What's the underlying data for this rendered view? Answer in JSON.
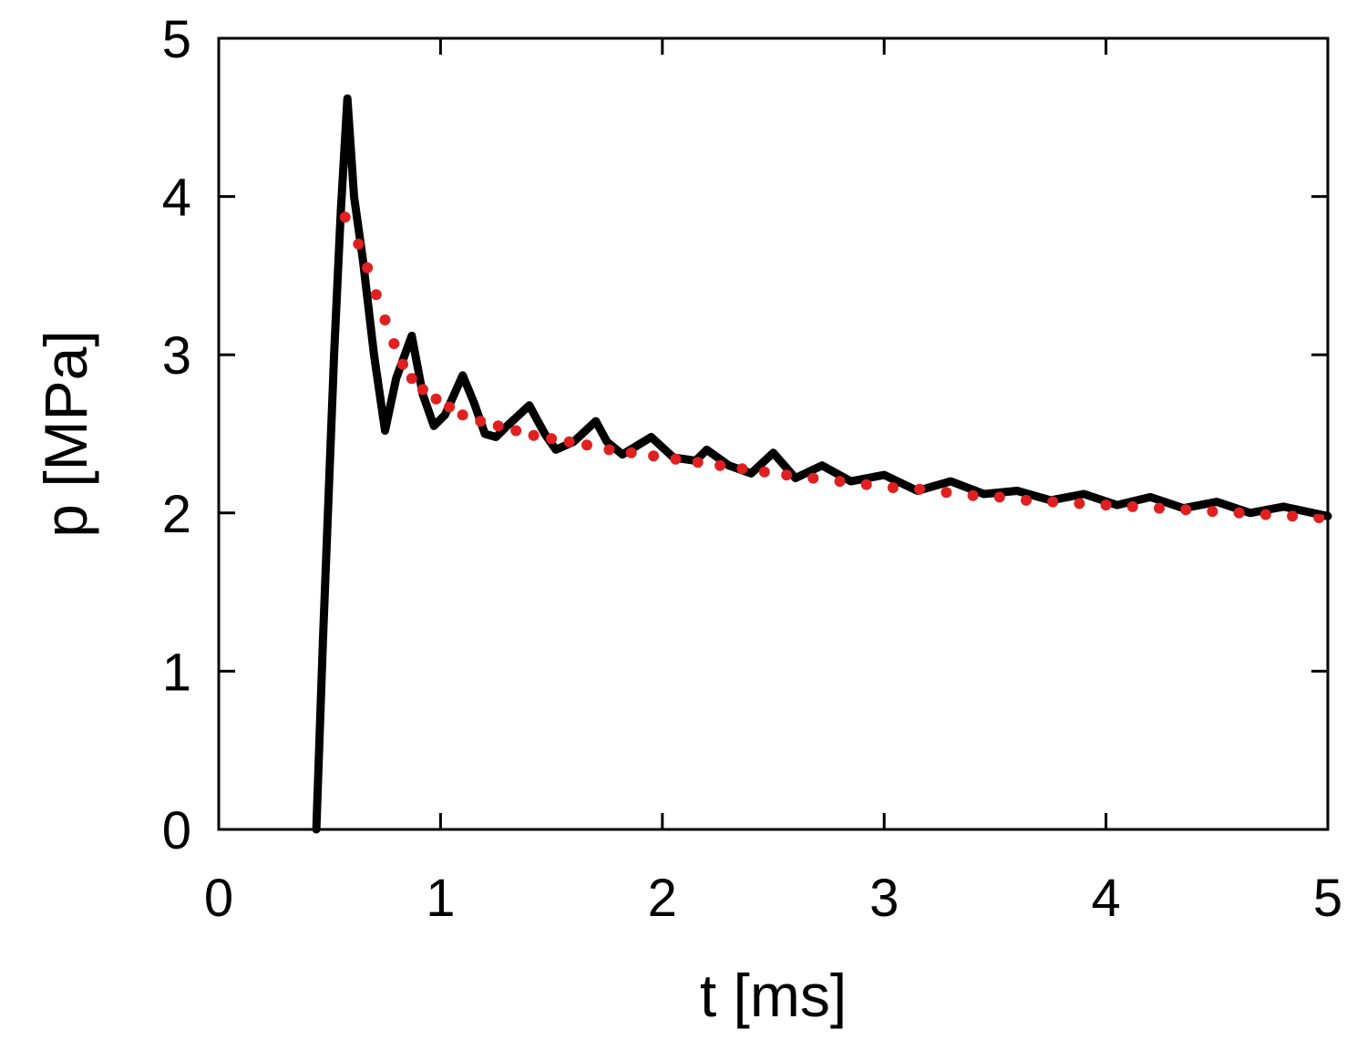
{
  "chart_data": {
    "type": "line",
    "xlabel": "t [ms]",
    "ylabel": "p [MPa]",
    "xlim": [
      0,
      5
    ],
    "ylim": [
      0,
      5
    ],
    "x_ticks": [
      "0",
      "1",
      "2",
      "3",
      "4",
      "5"
    ],
    "y_ticks": [
      "0",
      "1",
      "2",
      "3",
      "4",
      "5"
    ],
    "grid": false,
    "legend": "none",
    "series": [
      {
        "style": "solid",
        "color": "#000000",
        "x": [
          0.44,
          0.47,
          0.52,
          0.55,
          0.58,
          0.61,
          0.65,
          0.7,
          0.75,
          0.8,
          0.87,
          0.92,
          0.97,
          1.02,
          1.1,
          1.15,
          1.2,
          1.25,
          1.3,
          1.4,
          1.47,
          1.52,
          1.6,
          1.7,
          1.75,
          1.82,
          1.95,
          2.05,
          2.15,
          2.2,
          2.3,
          2.4,
          2.5,
          2.6,
          2.72,
          2.85,
          3.0,
          3.15,
          3.3,
          3.45,
          3.6,
          3.75,
          3.9,
          4.05,
          4.2,
          4.35,
          4.5,
          4.65,
          4.8,
          5.0
        ],
        "y": [
          0.0,
          1.2,
          3.0,
          3.9,
          4.62,
          4.0,
          3.6,
          3.0,
          2.52,
          2.85,
          3.12,
          2.75,
          2.55,
          2.62,
          2.87,
          2.7,
          2.5,
          2.48,
          2.55,
          2.68,
          2.5,
          2.4,
          2.45,
          2.58,
          2.45,
          2.37,
          2.48,
          2.35,
          2.33,
          2.4,
          2.3,
          2.25,
          2.38,
          2.22,
          2.3,
          2.2,
          2.24,
          2.14,
          2.2,
          2.12,
          2.14,
          2.08,
          2.12,
          2.05,
          2.1,
          2.03,
          2.07,
          2.0,
          2.04,
          1.98
        ]
      },
      {
        "style": "dotted",
        "color": "#e02020",
        "x": [
          0.57,
          0.63,
          0.67,
          0.71,
          0.75,
          0.79,
          0.83,
          0.87,
          0.92,
          0.98,
          1.04,
          1.1,
          1.18,
          1.26,
          1.34,
          1.42,
          1.5,
          1.58,
          1.66,
          1.76,
          1.86,
          1.96,
          2.06,
          2.16,
          2.26,
          2.36,
          2.46,
          2.56,
          2.68,
          2.8,
          2.92,
          3.04,
          3.16,
          3.28,
          3.4,
          3.52,
          3.64,
          3.76,
          3.88,
          4.0,
          4.12,
          4.24,
          4.36,
          4.48,
          4.6,
          4.72,
          4.84,
          4.96
        ],
        "y": [
          3.87,
          3.7,
          3.55,
          3.38,
          3.22,
          3.07,
          2.94,
          2.85,
          2.78,
          2.72,
          2.67,
          2.62,
          2.58,
          2.55,
          2.52,
          2.49,
          2.47,
          2.45,
          2.43,
          2.4,
          2.38,
          2.36,
          2.34,
          2.32,
          2.3,
          2.28,
          2.26,
          2.24,
          2.22,
          2.2,
          2.18,
          2.16,
          2.15,
          2.13,
          2.11,
          2.1,
          2.08,
          2.07,
          2.06,
          2.05,
          2.04,
          2.03,
          2.02,
          2.01,
          2.0,
          1.99,
          1.98,
          1.97
        ]
      }
    ]
  }
}
